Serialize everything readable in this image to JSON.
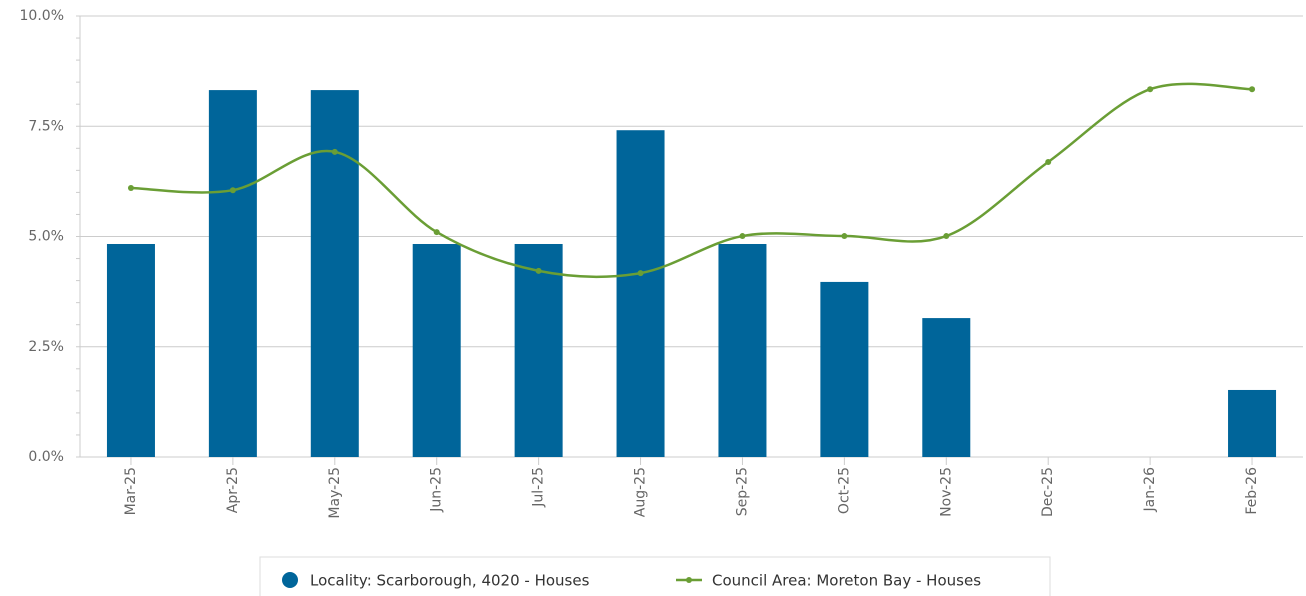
{
  "chart_data": {
    "type": "bar_line",
    "categories": [
      "Mar-25",
      "Apr-25",
      "May-25",
      "Jun-25",
      "Jul-25",
      "Aug-25",
      "Sep-25",
      "Oct-25",
      "Nov-25",
      "Dec-25",
      "Jan-26",
      "Feb-26"
    ],
    "series": [
      {
        "name": "Locality: Scarborough, 4020 - Houses",
        "type": "bar",
        "color": "#00659a",
        "values": [
          4.83,
          8.32,
          8.32,
          4.83,
          4.83,
          7.41,
          4.83,
          3.97,
          3.15,
          0,
          0,
          1.52
        ]
      },
      {
        "name": "Council Area: Moreton Bay - Houses",
        "type": "line",
        "color": "#6a9e35",
        "values": [
          6.1,
          6.05,
          6.92,
          5.1,
          4.22,
          4.17,
          5.01,
          5.01,
          5.01,
          6.69,
          8.34,
          8.34
        ]
      }
    ],
    "ylim": [
      0,
      10
    ],
    "yticks": [
      {
        "value": 0,
        "label": "0.0%"
      },
      {
        "value": 2.5,
        "label": "2.5%"
      },
      {
        "value": 5,
        "label": "5.0%"
      },
      {
        "value": 7.5,
        "label": "7.5%"
      },
      {
        "value": 10,
        "label": "10.0%"
      }
    ],
    "grid": true,
    "legend": "bottom"
  }
}
